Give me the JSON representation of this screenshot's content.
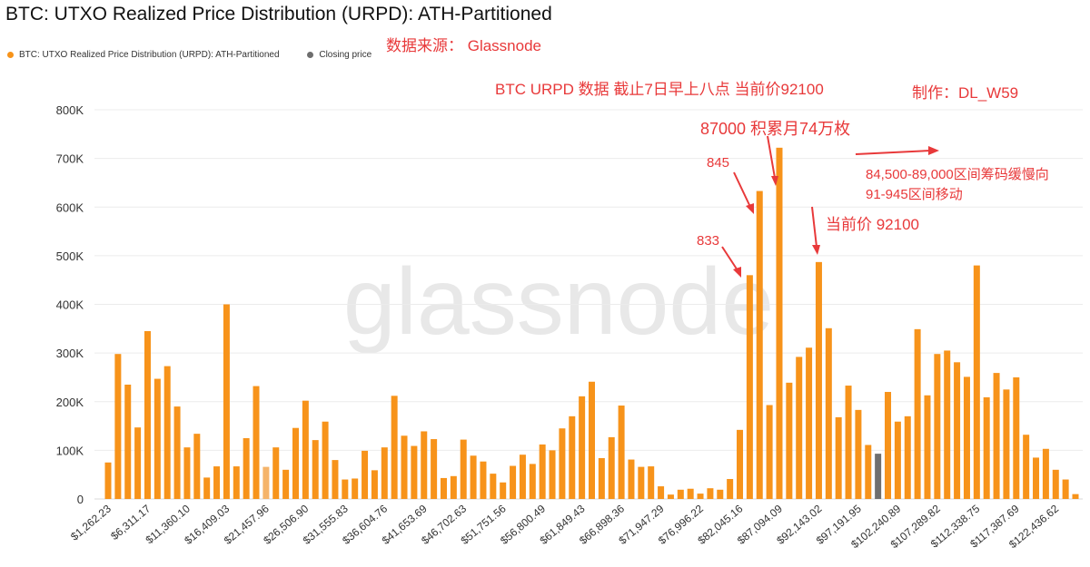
{
  "title": "BTC: UTXO Realized Price Distribution (URPD): ATH-Partitioned",
  "legend": [
    {
      "label": "BTC: UTXO Realized Price Distribution (URPD): ATH-Partitioned",
      "color": "#f7931a"
    },
    {
      "label": "Closing price",
      "color": "#6e6e6e"
    }
  ],
  "watermark": "glassnode",
  "annotations": {
    "source": "数据来源： Glassnode",
    "subtitle": "BTC  URPD 数据 截止7日早上八点 当前价92100",
    "author": "制作：DL_W59",
    "accumulated": "87000 积累月74万枚",
    "label_845": "845",
    "label_833": "833",
    "current_price": "当前价  92100",
    "movement_line1": "84,500-89,000区间筹码缓慢向",
    "movement_line2": "91-945区间移动"
  },
  "chart_data": {
    "type": "bar",
    "title": "BTC: UTXO Realized Price Distribution (URPD): ATH-Partitioned",
    "x_tick_labels": [
      "$1,262.23",
      "$6,311.17",
      "$11,360.10",
      "$16,409.03",
      "$21,457.96",
      "$26,506.90",
      "$31,555.83",
      "$36,604.76",
      "$41,653.69",
      "$46,702.63",
      "$51,751.56",
      "$56,800.49",
      "$61,849.43",
      "$66,898.36",
      "$71,947.29",
      "$76,996.22",
      "$82,045.16",
      "$87,094.09",
      "$92,143.02",
      "$97,191.95",
      "$102,240.89",
      "$107,289.82",
      "$112,338.75",
      "$117,387.69",
      "$122,436.62"
    ],
    "y_ticks": [
      "0",
      "100K",
      "200K",
      "300K",
      "400K",
      "500K",
      "600K",
      "700K",
      "800K"
    ],
    "ylim": [
      0,
      800000
    ],
    "grid": true,
    "legend_position": "top-left",
    "colors": {
      "series": "#f7931a",
      "closing": "#6e6e6e",
      "highlight": "#f5b46a"
    },
    "closing_price_index": 78,
    "highlight_index": 16,
    "values": [
      75000,
      298000,
      235000,
      147000,
      345000,
      247000,
      273000,
      190000,
      106000,
      134000,
      44000,
      67000,
      400000,
      67000,
      125000,
      232000,
      66000,
      106000,
      60000,
      146000,
      202000,
      121000,
      159000,
      80000,
      40000,
      42000,
      99000,
      59000,
      106000,
      212000,
      130000,
      109000,
      139000,
      123000,
      43000,
      47000,
      122000,
      89000,
      77000,
      52000,
      34000,
      68000,
      91000,
      72000,
      112000,
      100000,
      145000,
      170000,
      211000,
      241000,
      84000,
      127000,
      192000,
      81000,
      66000,
      67000,
      26000,
      9000,
      19000,
      21000,
      11000,
      22000,
      19000,
      41000,
      142000,
      460000,
      633000,
      193000,
      722000,
      239000,
      292000,
      311000,
      487000,
      351000,
      168000,
      233000,
      183000,
      111000,
      93000,
      220000,
      159000,
      170000,
      349000,
      213000,
      298000,
      305000,
      281000,
      251000,
      480000,
      209000,
      259000,
      225000,
      250000,
      132000,
      85000,
      103000,
      60000,
      40000,
      10000
    ]
  }
}
